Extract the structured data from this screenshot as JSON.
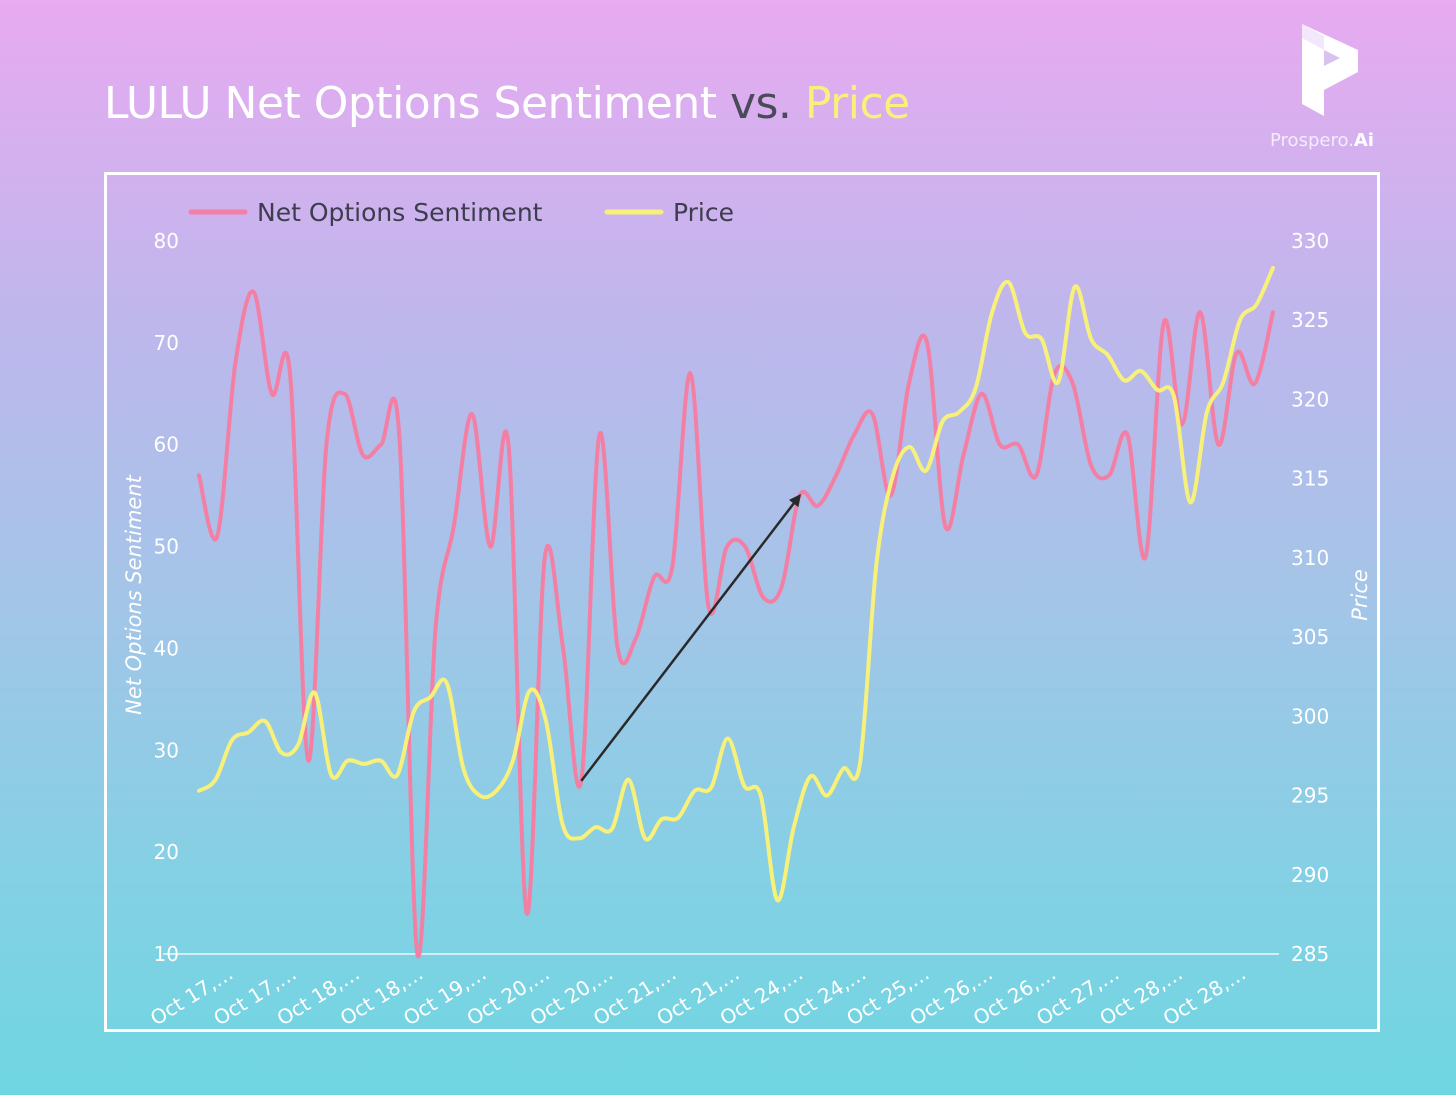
{
  "title": {
    "part1": "LULU Net Options Sentiment",
    "part2": "vs.",
    "part3": "Price"
  },
  "brand": {
    "name": "Prospero.",
    "suffix": "Ai",
    "logo_icon": "prospero-logo-icon"
  },
  "colors": {
    "sentiment": "#f47fa4",
    "price": "#f7f07a",
    "title_main": "#ffffff",
    "title_vs": "#4a4a5a",
    "title_price": "#f7f07a"
  },
  "chart_data": {
    "type": "line",
    "legend": [
      "Net Options Sentiment",
      "Price"
    ],
    "legend_position": "top-left",
    "ylabel_left": "Net Options Sentiment",
    "ylabel_right": "Price",
    "ylim_left": [
      10,
      80
    ],
    "ylim_right": [
      285,
      330
    ],
    "yticks_left": [
      10,
      20,
      30,
      40,
      50,
      60,
      70,
      80
    ],
    "yticks_right": [
      285,
      290,
      295,
      300,
      305,
      310,
      315,
      320,
      325,
      330
    ],
    "xtick_labels": [
      "Oct 17,…",
      "Oct 17,…",
      "Oct 18,…",
      "Oct 18,…",
      "Oct 19,…",
      "Oct 20,…",
      "Oct 20,…",
      "Oct 21,…",
      "Oct 21,…",
      "Oct 24,…",
      "Oct 24,…",
      "Oct 25,…",
      "Oct 26,…",
      "Oct 26,…",
      "Oct 27,…",
      "Oct 28,…",
      "Oct 28,…"
    ],
    "grid": false,
    "series": [
      {
        "name": "Net Options Sentiment",
        "axis": "left",
        "values": [
          57,
          51,
          68,
          75,
          65,
          67,
          29,
          60,
          65,
          59,
          60,
          61,
          10,
          42,
          52,
          63,
          50,
          60,
          14,
          49,
          40,
          27,
          61,
          40,
          41,
          47,
          48,
          67,
          44,
          50,
          50,
          45,
          46,
          55,
          54,
          57,
          61,
          63,
          55,
          66,
          70,
          52,
          59,
          65,
          60,
          60,
          57,
          67,
          66,
          58,
          57,
          61,
          49,
          72,
          62,
          73,
          60,
          69,
          66,
          73
        ]
      },
      {
        "name": "Price",
        "axis": "right",
        "values": [
          295.3,
          296,
          298.5,
          299,
          299.7,
          297.7,
          298.2,
          301.5,
          296.3,
          297.2,
          297,
          297.2,
          296.3,
          300.3,
          301.2,
          302.1,
          296.7,
          295,
          295.3,
          297.2,
          301.6,
          299.7,
          293.2,
          292.3,
          293,
          292.9,
          296,
          292.3,
          293.5,
          293.6,
          295.3,
          295.5,
          298.6,
          295.6,
          295,
          288.4,
          293,
          296.2,
          295,
          296.7,
          297,
          309.6,
          315.2,
          317,
          315.5,
          318.6,
          319.2,
          320.7,
          325.5,
          327.4,
          324.2,
          323.8,
          321.1,
          327.1,
          323.8,
          322.8,
          321.2,
          321.8,
          320.6,
          320.2,
          313.5,
          319.2,
          321.1,
          325,
          326,
          328.3
        ]
      }
    ],
    "annotations": [
      {
        "type": "arrow",
        "from_series": "Net Options Sentiment",
        "from": [
          21,
          27
        ],
        "to": [
          33,
          55
        ]
      }
    ]
  }
}
